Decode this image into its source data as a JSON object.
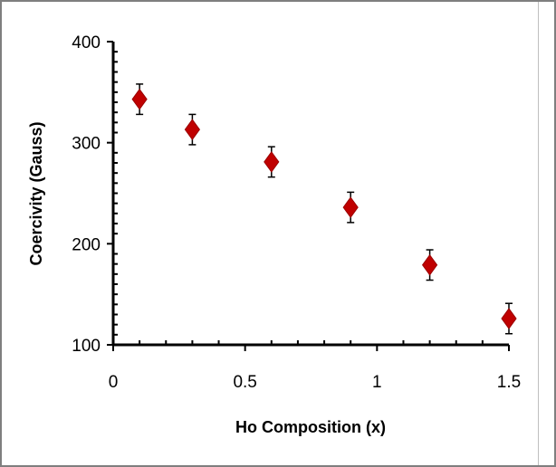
{
  "chart_data": {
    "type": "scatter",
    "title": "",
    "xlabel": "Ho Composition (x)",
    "ylabel": "Coercivity (Gauss)",
    "xlim": [
      0,
      1.5
    ],
    "ylim": [
      100,
      400
    ],
    "x_ticks": [
      0,
      0.5,
      1,
      1.5
    ],
    "x_tick_labels": [
      "0",
      "0.5",
      "1",
      "1.5"
    ],
    "y_ticks": [
      100,
      200,
      300,
      400
    ],
    "y_tick_labels": [
      "100",
      "200",
      "300",
      "400"
    ],
    "grid": false,
    "marker": "diamond",
    "marker_color": "#c00000",
    "series": [
      {
        "x": [
          0.1,
          0.3,
          0.6,
          0.9,
          1.2,
          1.5
        ],
        "y": [
          343,
          313,
          281,
          236,
          179,
          126
        ],
        "error": [
          15,
          15,
          15,
          15,
          15,
          15
        ]
      }
    ]
  }
}
